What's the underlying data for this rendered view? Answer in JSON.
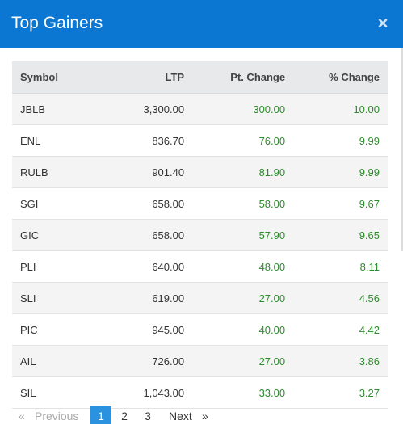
{
  "modal": {
    "title": "Top Gainers",
    "close_icon": "×"
  },
  "table": {
    "headers": {
      "symbol": "Symbol",
      "ltp": "LTP",
      "pt_change": "Pt. Change",
      "pct_change": "% Change"
    },
    "rows": [
      {
        "symbol": "JBLB",
        "ltp": "3,300.00",
        "pt_change": "300.00",
        "pct_change": "10.00"
      },
      {
        "symbol": "ENL",
        "ltp": "836.70",
        "pt_change": "76.00",
        "pct_change": "9.99"
      },
      {
        "symbol": "RULB",
        "ltp": "901.40",
        "pt_change": "81.90",
        "pct_change": "9.99"
      },
      {
        "symbol": "SGI",
        "ltp": "658.00",
        "pt_change": "58.00",
        "pct_change": "9.67"
      },
      {
        "symbol": "GIC",
        "ltp": "658.00",
        "pt_change": "57.90",
        "pct_change": "9.65"
      },
      {
        "symbol": "PLI",
        "ltp": "640.00",
        "pt_change": "48.00",
        "pct_change": "8.11"
      },
      {
        "symbol": "SLI",
        "ltp": "619.00",
        "pt_change": "27.00",
        "pct_change": "4.56"
      },
      {
        "symbol": "PIC",
        "ltp": "945.00",
        "pt_change": "40.00",
        "pct_change": "4.42"
      },
      {
        "symbol": "AIL",
        "ltp": "726.00",
        "pt_change": "27.00",
        "pct_change": "3.86"
      },
      {
        "symbol": "SIL",
        "ltp": "1,043.00",
        "pt_change": "33.00",
        "pct_change": "3.27"
      }
    ]
  },
  "pagination": {
    "first": "«",
    "previous": "Previous",
    "pages": [
      "1",
      "2",
      "3"
    ],
    "active_page": "1",
    "next": "Next",
    "last": "»"
  },
  "colors": {
    "header_bg": "#0b77d3",
    "positive": "#2e8b2e",
    "active_page": "#2a92df"
  }
}
